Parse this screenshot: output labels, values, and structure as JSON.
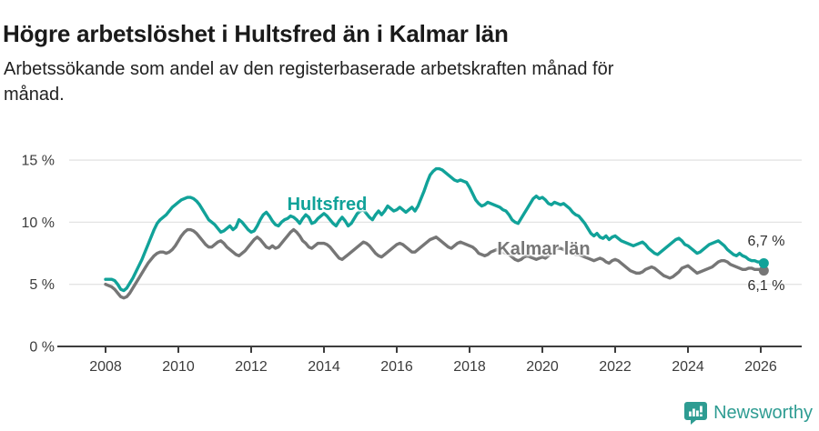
{
  "header": {
    "title": "Högre arbetslöshet i Hultsfred än i Kalmar län",
    "subtitle_lines": [
      "Arbetssökande som andel av den registerbaserade arbetskraften månad för",
      "månad."
    ]
  },
  "colors": {
    "accent_teal": "#11a299",
    "line_gray": "#767676",
    "grid": "#e4e4e4",
    "axis": "#3d3d3d",
    "axis_text": "#3c3c3c",
    "brand_teal": "#2e9c92"
  },
  "chart_data": {
    "type": "line",
    "x_start": 2008.0,
    "x_step_months": 1,
    "xlabel": "",
    "ylabel": "",
    "ylim": [
      0,
      16.5
    ],
    "grid": true,
    "legend_position": "inline-labels",
    "x_ticks": [
      {
        "value": 2008,
        "label": "2008"
      },
      {
        "value": 2010,
        "label": "2010"
      },
      {
        "value": 2012,
        "label": "2012"
      },
      {
        "value": 2014,
        "label": "2014"
      },
      {
        "value": 2016,
        "label": "2016"
      },
      {
        "value": 2018,
        "label": "2018"
      },
      {
        "value": 2020,
        "label": "2020"
      },
      {
        "value": 2022,
        "label": "2022"
      },
      {
        "value": 2024,
        "label": "2024"
      },
      {
        "value": 2026,
        "label": "2026"
      }
    ],
    "y_ticks": [
      {
        "value": 0,
        "label": "0 %"
      },
      {
        "value": 5,
        "label": "5 %"
      },
      {
        "value": 10,
        "label": "10 %"
      },
      {
        "value": 15,
        "label": "15 %"
      }
    ],
    "series": [
      {
        "name": "Hultsfred",
        "slug": "hultsfred",
        "color": "#11a299",
        "end_label": "6,7 %",
        "values": [
          5.4,
          5.4,
          5.4,
          5.3,
          5.0,
          4.6,
          4.5,
          4.7,
          5.1,
          5.5,
          6.0,
          6.5,
          7.0,
          7.6,
          8.2,
          8.8,
          9.4,
          9.9,
          10.2,
          10.4,
          10.6,
          10.9,
          11.2,
          11.4,
          11.6,
          11.8,
          11.9,
          12.0,
          12.0,
          11.9,
          11.7,
          11.4,
          11.0,
          10.6,
          10.2,
          10.0,
          9.8,
          9.5,
          9.2,
          9.3,
          9.5,
          9.7,
          9.4,
          9.6,
          10.2,
          10.0,
          9.7,
          9.4,
          9.2,
          9.3,
          9.7,
          10.2,
          10.6,
          10.8,
          10.5,
          10.1,
          9.8,
          9.7,
          10.0,
          10.2,
          10.3,
          10.5,
          10.4,
          10.2,
          9.9,
          10.3,
          10.6,
          10.4,
          9.9,
          10.0,
          10.3,
          10.5,
          10.7,
          10.5,
          10.2,
          9.9,
          9.7,
          10.1,
          10.4,
          10.1,
          9.7,
          9.9,
          10.3,
          10.7,
          10.9,
          11.0,
          10.7,
          10.4,
          10.2,
          10.6,
          10.9,
          10.6,
          10.9,
          11.3,
          11.1,
          10.9,
          11.0,
          11.2,
          11.0,
          10.8,
          11.0,
          11.2,
          10.9,
          11.3,
          11.9,
          12.5,
          13.2,
          13.8,
          14.1,
          14.3,
          14.3,
          14.2,
          14.0,
          13.8,
          13.6,
          13.4,
          13.3,
          13.4,
          13.3,
          13.2,
          12.8,
          12.3,
          11.8,
          11.5,
          11.3,
          11.4,
          11.6,
          11.5,
          11.4,
          11.3,
          11.2,
          11.0,
          10.9,
          10.6,
          10.2,
          10.0,
          9.9,
          10.3,
          10.7,
          11.1,
          11.5,
          11.9,
          12.1,
          11.9,
          12.0,
          11.8,
          11.5,
          11.4,
          11.6,
          11.5,
          11.4,
          11.5,
          11.3,
          11.1,
          10.8,
          10.6,
          10.5,
          10.2,
          9.9,
          9.5,
          9.1,
          8.9,
          9.1,
          8.8,
          8.7,
          8.9,
          8.6,
          8.8,
          8.9,
          8.7,
          8.5,
          8.4,
          8.3,
          8.2,
          8.1,
          8.2,
          8.3,
          8.4,
          8.2,
          7.9,
          7.7,
          7.5,
          7.4,
          7.6,
          7.8,
          8.0,
          8.2,
          8.4,
          8.6,
          8.7,
          8.5,
          8.2,
          8.1,
          7.9,
          7.7,
          7.5,
          7.6,
          7.8,
          8.0,
          8.2,
          8.3,
          8.4,
          8.5,
          8.3,
          8.1,
          7.8,
          7.6,
          7.4,
          7.3,
          7.5,
          7.3,
          7.2,
          7.0,
          6.9,
          6.9,
          6.8,
          6.8,
          6.7
        ]
      },
      {
        "name": "Kalmar län",
        "slug": "kalmar-lan",
        "color": "#767676",
        "end_label": "6,1 %",
        "values": [
          5.0,
          4.9,
          4.8,
          4.6,
          4.3,
          4.0,
          3.9,
          4.0,
          4.3,
          4.7,
          5.1,
          5.5,
          5.9,
          6.3,
          6.7,
          7.0,
          7.3,
          7.5,
          7.6,
          7.6,
          7.5,
          7.6,
          7.8,
          8.1,
          8.5,
          8.9,
          9.2,
          9.4,
          9.4,
          9.3,
          9.1,
          8.8,
          8.5,
          8.2,
          8.0,
          8.0,
          8.2,
          8.4,
          8.5,
          8.3,
          8.0,
          7.8,
          7.6,
          7.4,
          7.3,
          7.5,
          7.7,
          8.0,
          8.3,
          8.6,
          8.8,
          8.6,
          8.3,
          8.0,
          7.9,
          8.1,
          7.9,
          8.0,
          8.3,
          8.6,
          8.9,
          9.2,
          9.4,
          9.2,
          8.9,
          8.5,
          8.3,
          8.0,
          7.9,
          8.1,
          8.3,
          8.3,
          8.3,
          8.2,
          8.0,
          7.7,
          7.4,
          7.1,
          7.0,
          7.2,
          7.4,
          7.6,
          7.8,
          8.0,
          8.2,
          8.4,
          8.3,
          8.1,
          7.8,
          7.5,
          7.3,
          7.2,
          7.4,
          7.6,
          7.8,
          8.0,
          8.2,
          8.3,
          8.2,
          8.0,
          7.8,
          7.6,
          7.6,
          7.8,
          8.0,
          8.2,
          8.4,
          8.6,
          8.7,
          8.8,
          8.6,
          8.4,
          8.2,
          8.0,
          7.9,
          8.1,
          8.3,
          8.4,
          8.3,
          8.2,
          8.1,
          8.0,
          7.8,
          7.5,
          7.4,
          7.3,
          7.4,
          7.6,
          7.7,
          7.8,
          7.7,
          7.6,
          7.5,
          7.4,
          7.2,
          7.0,
          6.9,
          7.0,
          7.2,
          7.3,
          7.2,
          7.1,
          7.0,
          7.1,
          7.2,
          7.1,
          7.3,
          7.6,
          7.8,
          7.9,
          7.9,
          7.8,
          7.7,
          7.6,
          7.5,
          7.4,
          7.4,
          7.3,
          7.2,
          7.1,
          7.0,
          6.9,
          7.0,
          7.1,
          7.0,
          6.8,
          6.7,
          6.9,
          7.0,
          6.9,
          6.7,
          6.5,
          6.3,
          6.1,
          6.0,
          5.9,
          5.9,
          6.0,
          6.2,
          6.3,
          6.4,
          6.3,
          6.1,
          5.9,
          5.7,
          5.6,
          5.5,
          5.6,
          5.8,
          6.0,
          6.3,
          6.4,
          6.5,
          6.3,
          6.1,
          5.9,
          6.0,
          6.1,
          6.2,
          6.3,
          6.4,
          6.6,
          6.8,
          6.9,
          6.9,
          6.8,
          6.6,
          6.5,
          6.4,
          6.3,
          6.2,
          6.2,
          6.3,
          6.3,
          6.2,
          6.2,
          6.2,
          6.1
        ]
      }
    ]
  },
  "footer": {
    "brand": "Newsworthy",
    "icon": "newsworthy-chart-bubble-icon"
  }
}
